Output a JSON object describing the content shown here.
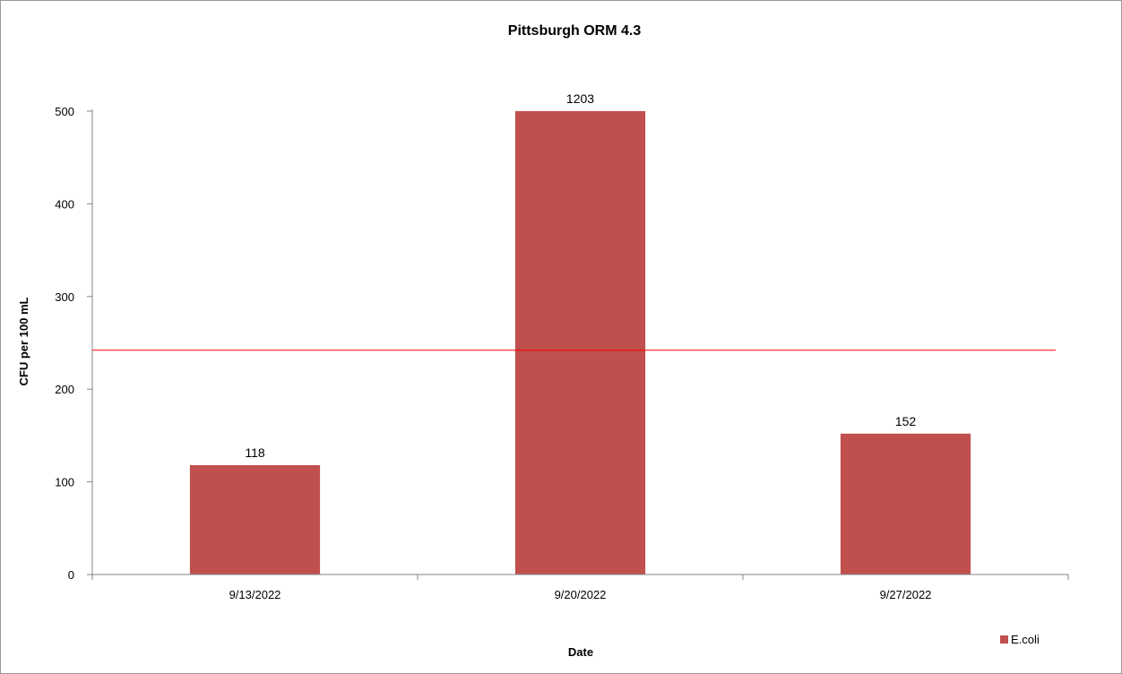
{
  "chart_data": {
    "type": "bar",
    "title": "Pittsburgh ORM 4.3",
    "xlabel": "Date",
    "ylabel": "CFU per 100 mL",
    "categories": [
      "9/13/2022",
      "9/20/2022",
      "9/27/2022"
    ],
    "series": [
      {
        "name": "E.coli",
        "color": "#c0504d",
        "values": [
          118,
          1203,
          152
        ],
        "data_labels": [
          "118",
          "1203",
          "152"
        ]
      }
    ],
    "ylim": [
      0,
      500
    ],
    "y_clipped_at_max": true,
    "yticks": [
      0,
      100,
      200,
      300,
      400,
      500
    ],
    "reference_line": {
      "y": 242,
      "color": "#ff0000"
    },
    "grid": false,
    "legend_position": "bottom-right"
  }
}
